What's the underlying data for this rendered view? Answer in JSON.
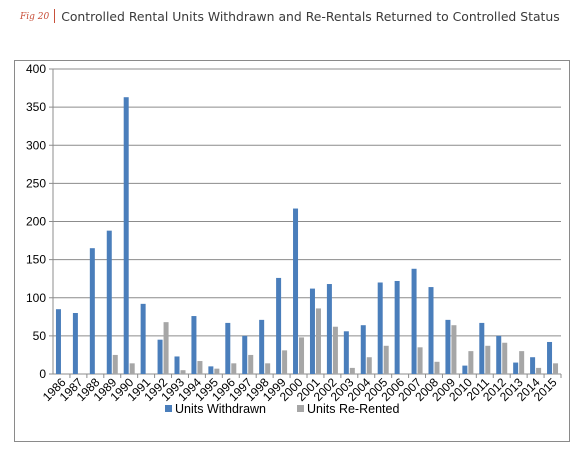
{
  "header": {
    "fig_label": "Fig 20",
    "title": "Controlled Rental Units Withdrawn and Re-Rentals Returned to Controlled Status"
  },
  "chart_data": {
    "type": "bar",
    "categories": [
      "1986",
      "1987",
      "1988",
      "1989",
      "1990",
      "1991",
      "1992",
      "1993",
      "1994",
      "1995",
      "1996",
      "1997",
      "1998",
      "1999",
      "2000",
      "2001",
      "2002",
      "2003",
      "2004",
      "2005",
      "2006",
      "2007",
      "2008",
      "2009",
      "2010",
      "2011",
      "2012",
      "2013",
      "2014",
      "2015"
    ],
    "series": [
      {
        "name": "Units Withdrawn",
        "color": "#4a7ebb",
        "values": [
          85,
          80,
          165,
          188,
          363,
          92,
          45,
          23,
          76,
          10,
          67,
          50,
          71,
          126,
          217,
          112,
          118,
          56,
          64,
          120,
          122,
          138,
          114,
          71,
          11,
          67,
          50,
          15,
          22,
          42
        ]
      },
      {
        "name": "Units Re-Rented",
        "color": "#a6a6a6",
        "values": [
          0,
          0,
          0,
          25,
          14,
          0,
          68,
          5,
          17,
          7,
          14,
          25,
          14,
          31,
          48,
          86,
          62,
          8,
          22,
          37,
          0,
          35,
          16,
          64,
          30,
          37,
          41,
          30,
          8,
          14
        ]
      }
    ],
    "yticks": [
      0,
      50,
      100,
      150,
      200,
      250,
      300,
      350,
      400
    ],
    "ylim": [
      0,
      400
    ],
    "grid": true,
    "legend_position": "bottom"
  }
}
